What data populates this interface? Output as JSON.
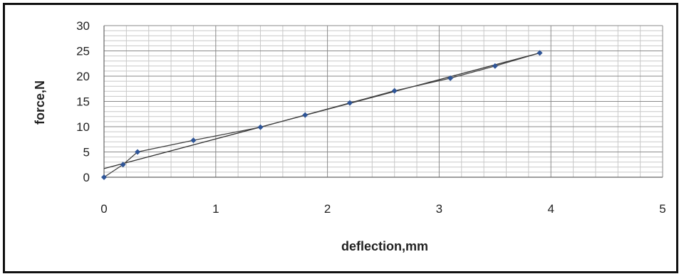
{
  "chart_data": {
    "type": "scatter",
    "title": "",
    "xlabel": "deflection,mm",
    "ylabel": "force,N",
    "xlim": [
      0,
      5
    ],
    "ylim": [
      0,
      30
    ],
    "x_ticks": [
      0,
      1,
      2,
      3,
      4,
      5
    ],
    "y_ticks": [
      0,
      5,
      10,
      15,
      20,
      25,
      30
    ],
    "grid": true,
    "legend": "none",
    "series": [
      {
        "x": [
          0,
          0.17,
          0.3,
          0.8,
          1.4,
          1.8,
          2.2,
          2.6,
          3.1,
          3.5,
          3.9
        ],
        "y": [
          0,
          2.5,
          5,
          7.3,
          9.9,
          12.3,
          14.7,
          17.1,
          19.6,
          22.0,
          24.6
        ],
        "color": "#2f5597"
      }
    ],
    "trendline": {
      "type": "linear",
      "x": [
        0,
        3.9
      ],
      "y": [
        1.7,
        24.6
      ],
      "color": "#333333"
    }
  }
}
